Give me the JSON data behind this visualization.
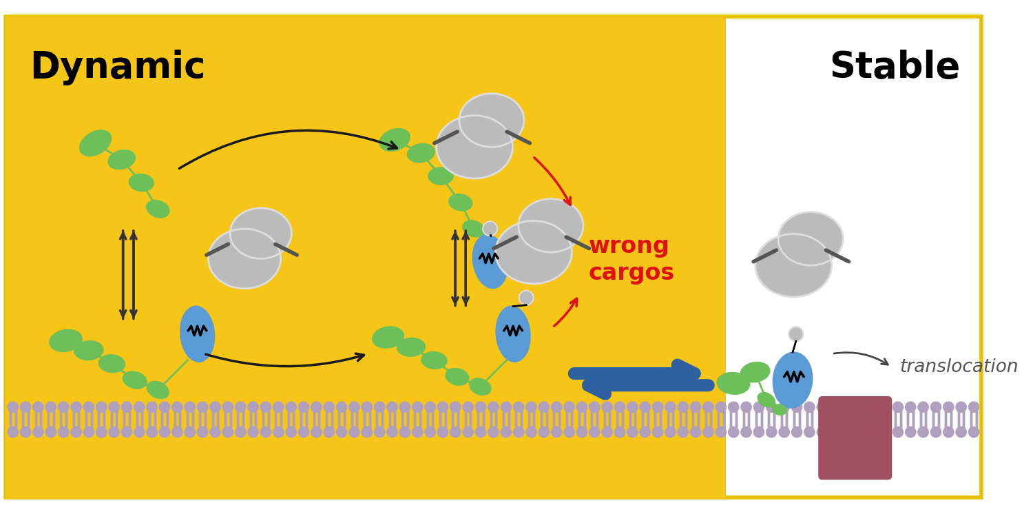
{
  "bg_yellow": "#F5C518",
  "bg_white": "#FFFFFF",
  "border_yellow": "#E8C000",
  "gray_blob": "#BBBBBB",
  "gray_blob_outline": "#DDDDDD",
  "green_ellipse": "#6DBF5A",
  "blue_ellipse": "#5B9BD5",
  "membrane_lipid": "#B0A0C0",
  "translocon_color": "#A05060",
  "dark_gray_rod": "#555555",
  "text_dynamic": "Dynamic",
  "text_stable": "Stable",
  "text_wrong": "wrong\ncargos",
  "text_translocation": "translocation",
  "arrow_color_black": "#1A1A1A",
  "arrow_color_red": "#DD1111",
  "arrow_color_blue": "#2E5FA0",
  "arrow_double_color": "#333333"
}
